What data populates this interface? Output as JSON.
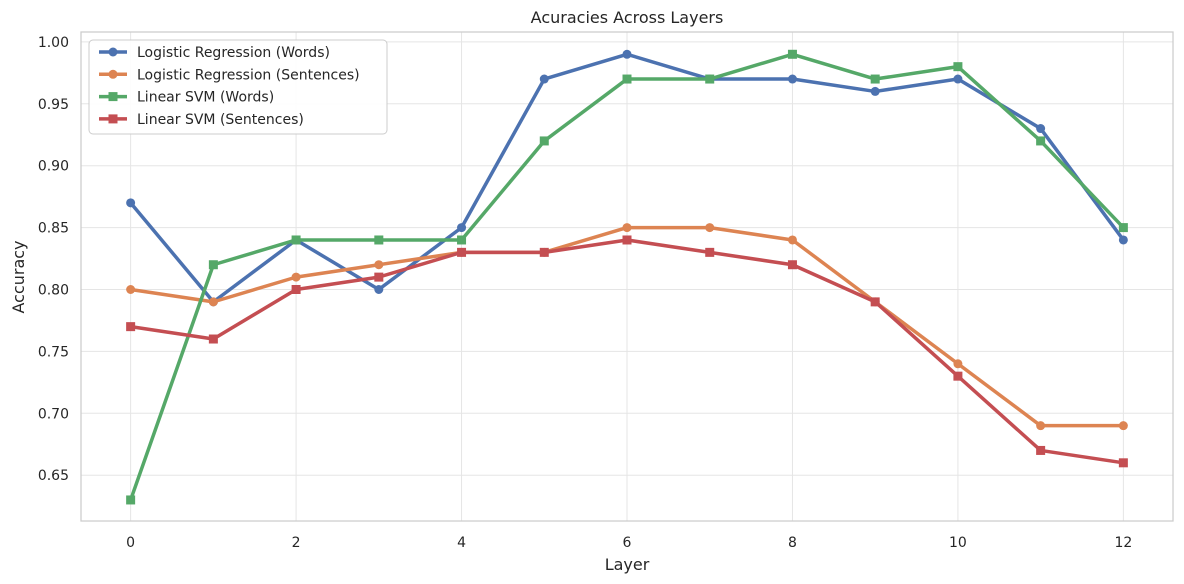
{
  "chart_data": {
    "type": "line",
    "title": "Acuracies Across Layers",
    "xlabel": "Layer",
    "ylabel": "Accuracy",
    "x": [
      0,
      1,
      2,
      3,
      4,
      5,
      6,
      7,
      8,
      9,
      10,
      11,
      12
    ],
    "xticks": [
      "0",
      "2",
      "4",
      "6",
      "8",
      "10",
      "12"
    ],
    "yticks": [
      "0.65",
      "0.70",
      "0.75",
      "0.80",
      "0.85",
      "0.90",
      "0.95",
      "1.00"
    ],
    "xlim": [
      -0.6,
      12.6
    ],
    "ylim": [
      0.613,
      1.008
    ],
    "grid": true,
    "legend_position": "top-left",
    "series": [
      {
        "name": "Logistic Regression (Words)",
        "color": "#4c72b0",
        "marker": "circle",
        "values": [
          0.87,
          0.79,
          0.84,
          0.8,
          0.85,
          0.97,
          0.99,
          0.97,
          0.97,
          0.96,
          0.97,
          0.93,
          0.84
        ]
      },
      {
        "name": "Logistic Regression (Sentences)",
        "color": "#dd8452",
        "marker": "circle",
        "values": [
          0.8,
          0.79,
          0.81,
          0.82,
          0.83,
          0.83,
          0.85,
          0.85,
          0.84,
          0.79,
          0.74,
          0.69,
          0.69
        ]
      },
      {
        "name": "Linear SVM (Words)",
        "color": "#55a868",
        "marker": "square",
        "values": [
          0.63,
          0.82,
          0.84,
          0.84,
          0.84,
          0.92,
          0.97,
          0.97,
          0.99,
          0.97,
          0.98,
          0.92,
          0.85
        ]
      },
      {
        "name": "Linear SVM (Sentences)",
        "color": "#c44e52",
        "marker": "square",
        "values": [
          0.77,
          0.76,
          0.8,
          0.81,
          0.83,
          0.83,
          0.84,
          0.83,
          0.82,
          0.79,
          0.73,
          0.67,
          0.66
        ]
      }
    ]
  }
}
